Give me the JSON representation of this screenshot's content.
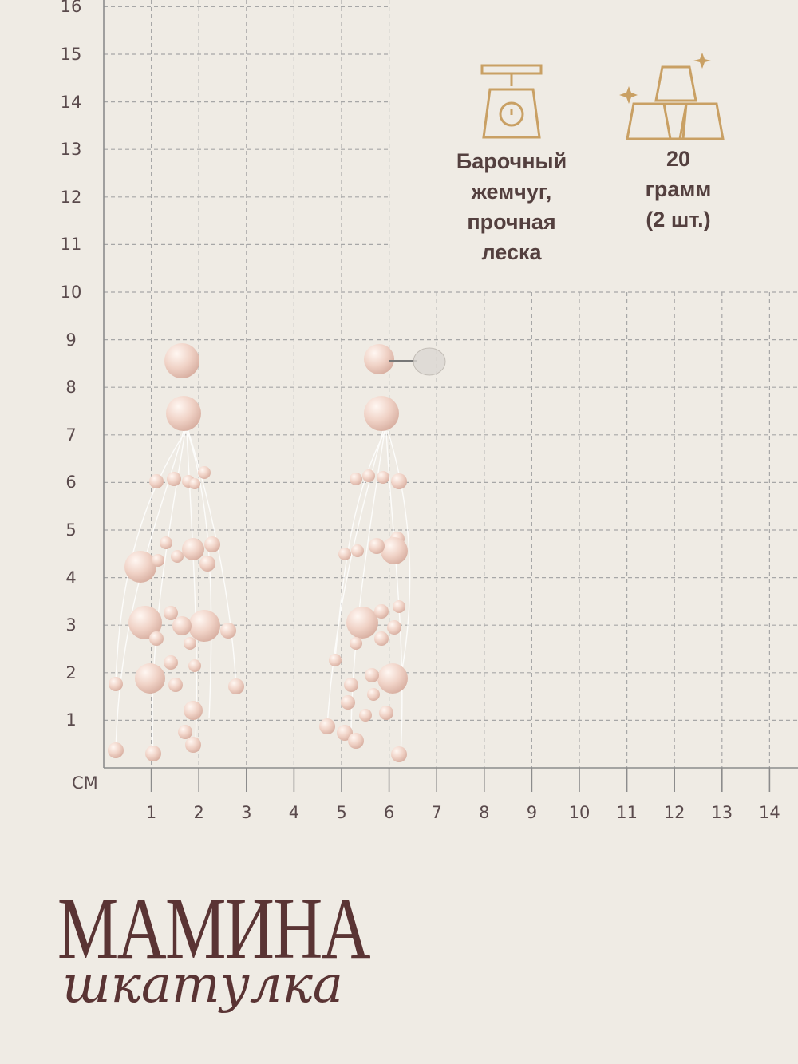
{
  "scale": {
    "unit": "СМ",
    "y_ticks": [
      "16",
      "15",
      "14",
      "13",
      "12",
      "11",
      "10",
      "9",
      "8",
      "7",
      "6",
      "5",
      "4",
      "3",
      "2",
      "1"
    ],
    "x_ticks": [
      "1",
      "2",
      "3",
      "4",
      "5",
      "6",
      "7",
      "8",
      "9",
      "10",
      "11",
      "12",
      "13",
      "14"
    ]
  },
  "info": {
    "material": "Барочный\nжемчуг,\nпрочная\nлеска",
    "weight": "20\nграмм\n(2 шт.)",
    "material_icon": "scale-icon",
    "weight_icon": "gold-bars-icon"
  },
  "brand": {
    "title": "МАМИНА",
    "subtitle": "шкатулка"
  },
  "colors": {
    "background": "#efebe4",
    "grid": "#a7a7a7",
    "icon_gold": "#c9a064",
    "text": "#54403f",
    "brand": "#5a3434",
    "pearl": "#f2d7cd"
  }
}
